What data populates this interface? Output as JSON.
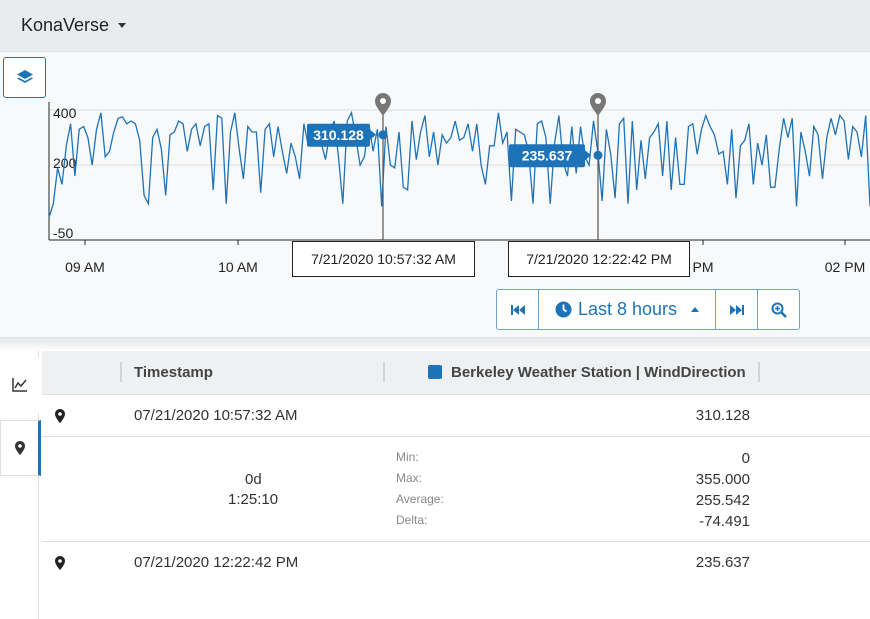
{
  "app": {
    "title": "KonaVerse"
  },
  "chart_data": {
    "type": "line",
    "y_ticks": [
      "400",
      "200",
      "-50"
    ],
    "x_ticks": [
      "09 AM",
      "10 AM",
      "PM",
      "02 PM"
    ],
    "ylim": [
      -50,
      400
    ],
    "series": [
      {
        "color": "#1e73b8",
        "values": [
          10,
          60,
          190,
          130,
          270,
          350,
          160,
          330,
          340,
          300,
          200,
          330,
          390,
          230,
          250,
          320,
          370,
          375,
          350,
          360,
          350,
          290,
          90,
          60,
          300,
          330,
          260,
          90,
          310,
          320,
          360,
          350,
          250,
          330,
          350,
          270,
          340,
          350,
          110,
          380,
          370,
          60,
          320,
          390,
          260,
          150,
          340,
          320,
          320,
          100,
          330,
          350,
          230,
          340,
          250,
          170,
          280,
          230,
          150,
          350,
          270,
          330,
          310,
          280,
          220,
          320,
          360,
          230,
          60,
          360,
          390,
          300,
          200,
          230,
          350,
          250,
          330,
          50,
          340,
          200,
          190,
          320,
          120,
          110,
          360,
          220,
          320,
          380,
          230,
          320,
          200,
          310,
          280,
          300,
          360,
          290,
          300,
          350,
          250,
          350,
          200,
          130,
          270,
          270,
          390,
          280,
          320,
          70,
          330,
          320,
          310,
          250,
          60,
          350,
          360,
          300,
          60,
          280,
          380,
          210,
          160,
          340,
          170,
          340,
          230,
          200,
          360,
          250,
          70,
          330,
          240,
          80,
          350,
          370,
          60,
          360,
          110,
          290,
          150,
          300,
          320,
          350,
          160,
          360,
          110,
          300,
          130,
          130,
          340,
          350,
          240,
          330,
          380,
          340,
          310,
          240,
          250,
          130,
          330,
          80,
          270,
          290,
          350,
          130,
          280,
          200,
          310,
          120,
          120,
          260,
          370,
          300,
          370,
          50,
          320,
          250,
          160,
          340,
          310,
          150,
          300,
          370,
          310,
          380,
          360,
          220,
          340,
          320,
          230,
          380,
          50
        ]
      }
    ]
  },
  "markers": [
    {
      "value_label": "310.128",
      "time_label": "7/21/2020 10:57:32 AM",
      "color": "#1e73b8"
    },
    {
      "value_label": "235.637",
      "time_label": "7/21/2020 12:22:42 PM",
      "color": "#1e73b8"
    }
  ],
  "controls": {
    "range_label": "Last 8 hours"
  },
  "table": {
    "columns": {
      "timestamp": "Timestamp",
      "series": "Berkeley Weather Station | WindDirection"
    },
    "rows": [
      {
        "timestamp": "07/21/2020 10:57:32 AM",
        "value": "310.128"
      },
      {
        "timestamp": "07/21/2020 12:22:42 PM",
        "value": "235.637"
      }
    ],
    "summary": {
      "duration_days": "0d",
      "duration_time": "1:25:10",
      "stats": [
        {
          "label": "Min:",
          "value": "0"
        },
        {
          "label": "Max:",
          "value": "355.000"
        },
        {
          "label": "Average:",
          "value": "255.542"
        },
        {
          "label": "Delta:",
          "value": "-74.491"
        }
      ]
    }
  },
  "icons": {
    "layers": "layers-icon",
    "skip_back": "skip-back-icon",
    "clock": "clock-icon",
    "skip_forward": "skip-forward-icon",
    "zoom": "zoom-icon",
    "line_chart": "line-chart-icon",
    "marker": "map-marker-icon"
  }
}
